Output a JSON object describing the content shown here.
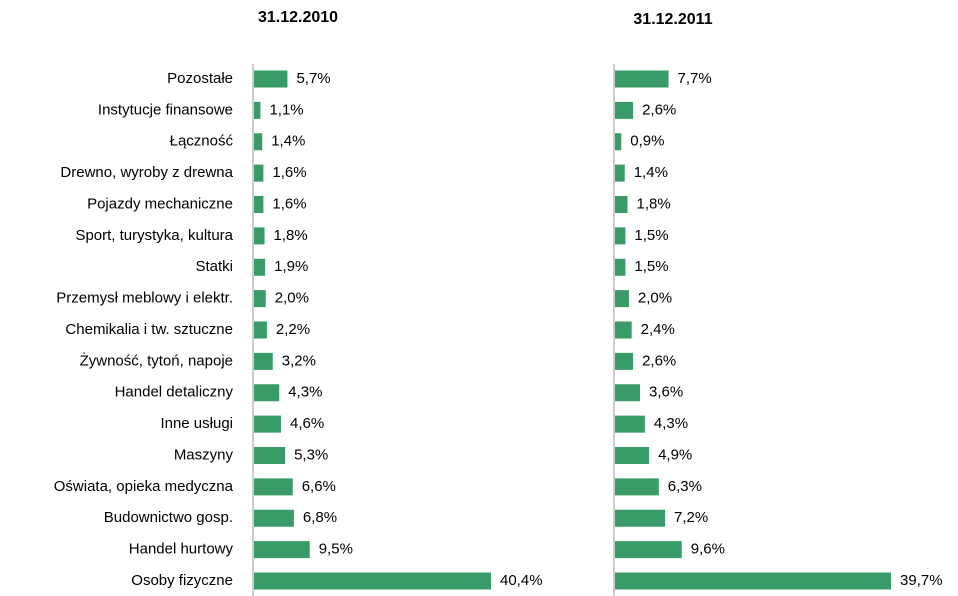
{
  "chart_data": [
    {
      "type": "bar",
      "orientation": "horizontal",
      "title": "31.12.2010",
      "color": "#389b68",
      "categories": [
        "Pozostałe",
        "Instytucje finansowe",
        "Łączność",
        "Drewno, wyroby z drewna",
        "Pojazdy mechaniczne",
        "Sport, turystyka,  kultura",
        "Statki",
        "Przemysł meblowy i elektr.",
        "Chemikalia i tw. sztuczne",
        "Żywność, tytoń,  napoje",
        "Handel detaliczny",
        "Inne usługi",
        "Maszyny",
        "Oświata, opieka medyczna",
        "Budownictwo gosp.",
        "Handel hurtowy",
        "Osoby fizyczne"
      ],
      "values": [
        5.7,
        1.1,
        1.4,
        1.6,
        1.6,
        1.8,
        1.9,
        2.0,
        2.2,
        3.2,
        4.3,
        4.6,
        5.3,
        6.6,
        6.8,
        9.5,
        40.4
      ],
      "value_labels": [
        "5,7%",
        "1,1%",
        "1,4%",
        "1,6%",
        "1,6%",
        "1,8%",
        "1,9%",
        "2,0%",
        "2,2%",
        "3,2%",
        "4,3%",
        "4,6%",
        "5,3%",
        "6,6%",
        "6,8%",
        "9,5%",
        "40,4%"
      ]
    },
    {
      "type": "bar",
      "orientation": "horizontal",
      "title": "31.12.2011",
      "color": "#389b68",
      "values": [
        7.7,
        2.6,
        0.9,
        1.4,
        1.8,
        1.5,
        1.5,
        2.0,
        2.4,
        2.6,
        3.6,
        4.3,
        4.9,
        6.3,
        7.2,
        9.6,
        39.7
      ],
      "value_labels": [
        "7,7%",
        "2,6%",
        "0,9%",
        "1,4%",
        "1,8%",
        "1,5%",
        "1,5%",
        "2,0%",
        "2,4%",
        "2,6%",
        "3,6%",
        "4,3%",
        "4,9%",
        "6,3%",
        "7,2%",
        "9,6%",
        "39,7%"
      ]
    }
  ]
}
